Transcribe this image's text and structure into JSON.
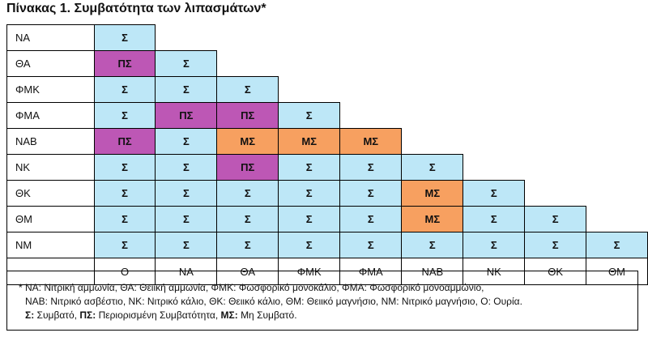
{
  "title": "Πίνακας 1. Συμβατότητα των λιπασμάτων*",
  "colors": {
    "S": "#bde7f7",
    "PS": "#bd57b5",
    "MS": "#f7a060"
  },
  "rows": [
    {
      "label": "ΝΑ",
      "cells": [
        "Σ"
      ]
    },
    {
      "label": "ΘΑ",
      "cells": [
        "ΠΣ",
        "Σ"
      ]
    },
    {
      "label": "ΦΜΚ",
      "cells": [
        "Σ",
        "Σ",
        "Σ"
      ]
    },
    {
      "label": "ΦΜΑ",
      "cells": [
        "Σ",
        "ΠΣ",
        "ΠΣ",
        "Σ"
      ]
    },
    {
      "label": "ΝΑΒ",
      "cells": [
        "ΠΣ",
        "Σ",
        "ΜΣ",
        "ΜΣ",
        "ΜΣ"
      ]
    },
    {
      "label": "ΝΚ",
      "cells": [
        "Σ",
        "Σ",
        "ΠΣ",
        "Σ",
        "Σ",
        "Σ"
      ]
    },
    {
      "label": "ΘΚ",
      "cells": [
        "Σ",
        "Σ",
        "Σ",
        "Σ",
        "Σ",
        "ΜΣ",
        "Σ"
      ]
    },
    {
      "label": "ΘΜ",
      "cells": [
        "Σ",
        "Σ",
        "Σ",
        "Σ",
        "Σ",
        "ΜΣ",
        "Σ",
        "Σ"
      ]
    },
    {
      "label": "ΝΜ",
      "cells": [
        "Σ",
        "Σ",
        "Σ",
        "Σ",
        "Σ",
        "Σ",
        "Σ",
        "Σ",
        "Σ"
      ]
    }
  ],
  "columns": [
    "Ο",
    "ΝΑ",
    "ΘΑ",
    "ΦΜΚ",
    "ΦΜΑ",
    "ΝΑΒ",
    "ΝΚ",
    "ΘΚ",
    "ΘΜ"
  ],
  "notes": {
    "line1": "* ΝΑ: Νιτρική αμμωνία, ΘΑ: Θειική αμμωνία, ΦΜΚ: Φωσφορικό μονοκάλιο, ΦΜΑ: Φωσφορικό μονοαμμώνιο,",
    "line2": "ΝΑΒ: Νιτρικό ασβέστιο, ΝΚ: Νιτρικό κάλιο, ΘΚ: Θειικό κάλιο, ΘΜ: Θειικό μαγνήσιο, ΝΜ: Νιτρικό μαγνήσιο, Ο: Ουρία.",
    "legend": [
      {
        "key": "Σ:",
        "text": "Συμβατό, "
      },
      {
        "key": "ΠΣ:",
        "text": "Περιορισμένη Συμβατότητα, "
      },
      {
        "key": "ΜΣ:",
        "text": "Μη Συμβατό."
      }
    ]
  }
}
